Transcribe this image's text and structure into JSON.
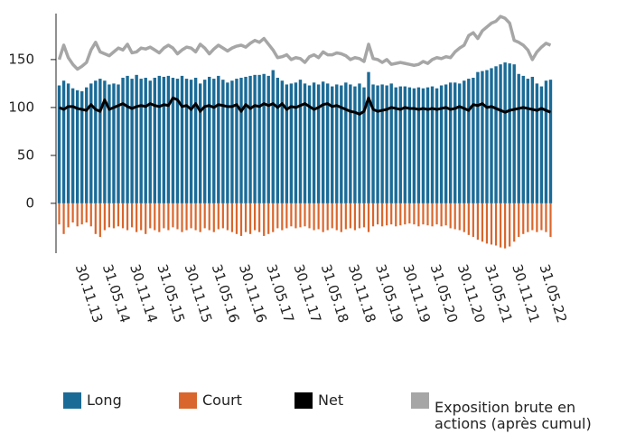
{
  "chart_data": {
    "type": "bar",
    "categories": [
      null,
      null,
      null,
      null,
      null,
      null,
      "30.11.13",
      null,
      null,
      null,
      null,
      null,
      "31.05.14",
      null,
      null,
      null,
      null,
      null,
      "30.11.14",
      null,
      null,
      null,
      null,
      null,
      "31.05.15",
      null,
      null,
      null,
      null,
      null,
      "30.11.15",
      null,
      null,
      null,
      null,
      null,
      "31.05.16",
      null,
      null,
      null,
      null,
      null,
      "30.11.16",
      null,
      null,
      null,
      null,
      null,
      "31.05.17",
      null,
      null,
      null,
      null,
      null,
      "30.11.17",
      null,
      null,
      null,
      null,
      null,
      "31.05.18",
      null,
      null,
      null,
      null,
      null,
      "30.11.18",
      null,
      null,
      null,
      null,
      null,
      "31.05.19",
      null,
      null,
      null,
      null,
      null,
      "30.11.19",
      null,
      null,
      null,
      null,
      null,
      "31.05.20",
      null,
      null,
      null,
      null,
      null,
      "30.11.20",
      null,
      null,
      null,
      null,
      null,
      "31.05.21",
      null,
      null,
      null,
      null,
      null,
      "30.11.21",
      null,
      null,
      null,
      null,
      null,
      "31.05.22"
    ],
    "series": [
      {
        "name": "Long",
        "type": "bar",
        "color": "#1b6b97",
        "values": [
          123,
          128,
          125,
          120,
          118,
          117,
          121,
          125,
          128,
          130,
          128,
          124,
          125,
          124,
          131,
          133,
          130,
          134,
          130,
          131,
          128,
          131,
          133,
          132,
          133,
          131,
          130,
          133,
          130,
          129,
          131,
          125,
          129,
          132,
          130,
          133,
          129,
          126,
          128,
          130,
          131,
          132,
          133,
          134,
          134,
          135,
          133,
          139,
          131,
          128,
          124,
          125,
          126,
          129,
          125,
          123,
          126,
          124,
          127,
          125,
          122,
          124,
          123,
          126,
          124,
          122,
          125,
          121,
          137,
          124,
          123,
          124,
          123,
          125,
          121,
          122,
          122,
          121,
          120,
          121,
          120,
          121,
          122,
          120,
          123,
          124,
          126,
          126,
          125,
          128,
          130,
          131,
          137,
          138,
          139,
          141,
          143,
          145,
          147,
          146,
          145,
          135,
          133,
          130,
          132,
          125,
          122,
          128,
          129
        ]
      },
      {
        "name": "Court",
        "type": "bar",
        "color": "#d9662d",
        "values": [
          -22,
          -32,
          -25,
          -20,
          -24,
          -22,
          -20,
          -24,
          -32,
          -35,
          -28,
          -25,
          -26,
          -24,
          -26,
          -28,
          -25,
          -30,
          -28,
          -32,
          -26,
          -28,
          -30,
          -26,
          -28,
          -25,
          -27,
          -30,
          -28,
          -26,
          -28,
          -30,
          -26,
          -28,
          -30,
          -27,
          -26,
          -28,
          -30,
          -32,
          -34,
          -30,
          -32,
          -28,
          -30,
          -34,
          -32,
          -30,
          -26,
          -28,
          -26,
          -24,
          -26,
          -25,
          -24,
          -26,
          -28,
          -27,
          -30,
          -28,
          -26,
          -28,
          -30,
          -27,
          -26,
          -28,
          -26,
          -25,
          -30,
          -24,
          -22,
          -24,
          -23,
          -22,
          -24,
          -23,
          -22,
          -21,
          -22,
          -24,
          -22,
          -23,
          -24,
          -22,
          -24,
          -23,
          -26,
          -27,
          -28,
          -30,
          -33,
          -35,
          -38,
          -40,
          -42,
          -43,
          -44,
          -46,
          -47,
          -45,
          -40,
          -35,
          -32,
          -30,
          -28,
          -30,
          -28,
          -30,
          -35
        ]
      },
      {
        "name": "Net",
        "type": "line",
        "color": "#000000",
        "values": [
          100,
          98,
          101,
          101,
          99,
          98,
          97,
          103,
          98,
          96,
          108,
          98,
          100,
          102,
          104,
          101,
          99,
          101,
          102,
          101,
          104,
          102,
          101,
          103,
          102,
          110,
          108,
          101,
          102,
          98,
          104,
          96,
          101,
          102,
          100,
          103,
          102,
          101,
          101,
          103,
          96,
          103,
          99,
          102,
          101,
          104,
          102,
          104,
          100,
          104,
          98,
          101,
          100,
          102,
          104,
          101,
          98,
          100,
          103,
          104,
          101,
          102,
          100,
          98,
          96,
          95,
          93,
          96,
          110,
          98,
          96,
          97,
          98,
          100,
          99,
          98,
          100,
          99,
          99,
          98,
          99,
          98,
          99,
          98,
          99,
          100,
          98,
          99,
          101,
          99,
          97,
          103,
          102,
          104,
          100,
          101,
          99,
          97,
          95,
          97,
          98,
          99,
          100,
          99,
          98,
          97,
          99,
          97,
          95
        ]
      },
      {
        "name": "Exposition brute en actions (après cumul)",
        "type": "line",
        "color": "#a6a6a6",
        "values": [
          150,
          165,
          152,
          145,
          140,
          143,
          147,
          160,
          168,
          158,
          156,
          154,
          158,
          162,
          160,
          166,
          157,
          158,
          162,
          161,
          163,
          160,
          157,
          162,
          165,
          162,
          156,
          160,
          163,
          162,
          158,
          166,
          162,
          156,
          161,
          165,
          162,
          159,
          162,
          164,
          165,
          163,
          167,
          170,
          168,
          172,
          166,
          160,
          152,
          153,
          155,
          150,
          152,
          151,
          147,
          153,
          155,
          152,
          158,
          155,
          155,
          157,
          156,
          154,
          150,
          152,
          151,
          148,
          166,
          151,
          150,
          147,
          150,
          145,
          146,
          147,
          146,
          145,
          144,
          145,
          148,
          146,
          150,
          152,
          151,
          153,
          152,
          158,
          162,
          165,
          175,
          178,
          172,
          180,
          184,
          188,
          190,
          195,
          193,
          188,
          170,
          168,
          165,
          160,
          150,
          158,
          163,
          167,
          165
        ]
      }
    ],
    "ylim": [
      -52,
      198
    ],
    "yticks": [
      0,
      50,
      100,
      150
    ]
  }
}
